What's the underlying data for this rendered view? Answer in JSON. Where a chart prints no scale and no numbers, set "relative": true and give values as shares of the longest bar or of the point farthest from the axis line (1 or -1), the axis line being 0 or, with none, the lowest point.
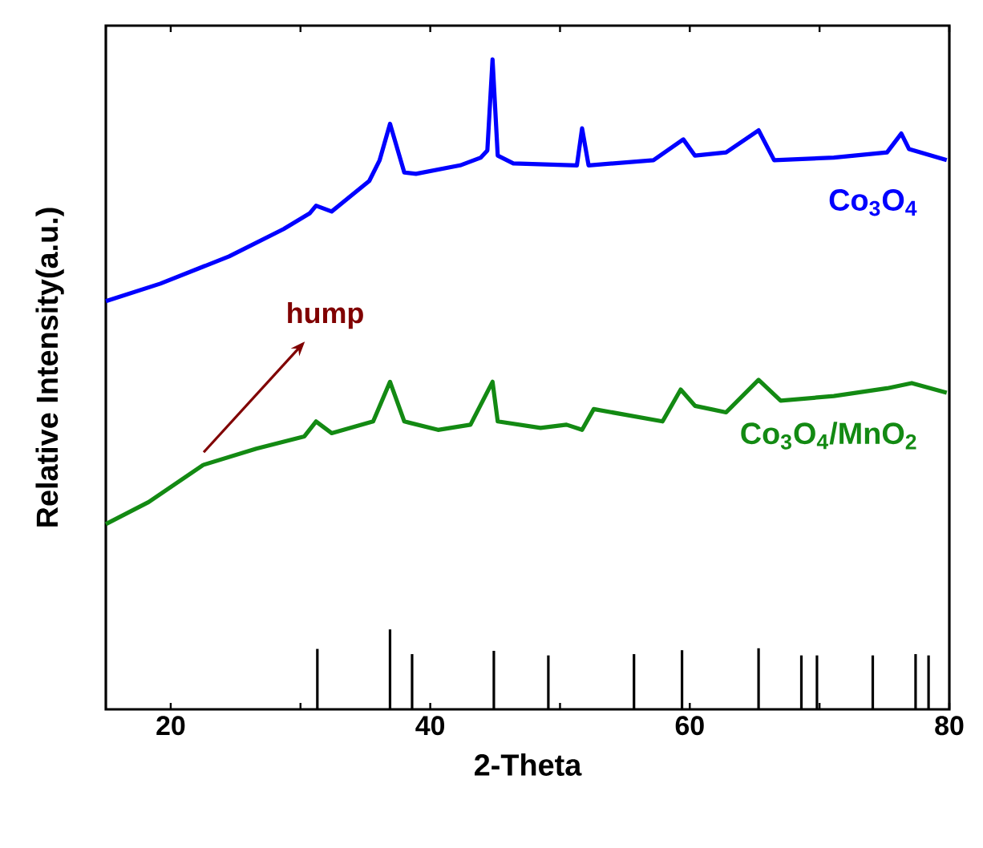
{
  "chart_data": {
    "type": "line",
    "xlabel": "2-Theta",
    "ylabel": "Relative Intensity(a.u.)",
    "relative": true,
    "xlim": [
      15,
      80
    ],
    "xticks": [
      20,
      {
        "value": 30,
        "label": null
      },
      40,
      {
        "value": 50,
        "label": null
      },
      60,
      {
        "value": 70,
        "label": null
      },
      80
    ],
    "marker": "none",
    "line_style": "solid",
    "annotations": [
      "hump"
    ],
    "series": [
      {
        "name": "Co$_{3}$O$_{4}$",
        "color": "#0000ff",
        "x": [
          15.0,
          19.2,
          24.5,
          28.7,
          30.7,
          31.2,
          32.4,
          35.3,
          36.1,
          36.9,
          38.0,
          38.9,
          42.3,
          43.9,
          44.4,
          44.8,
          45.2,
          46.4,
          51.3,
          51.7,
          52.2,
          57.2,
          59.5,
          60.4,
          62.8,
          65.3,
          66.5,
          71.1,
          75.2,
          76.3,
          76.9,
          79.8
        ],
        "values": [
          0.628,
          0.655,
          0.697,
          0.739,
          0.763,
          0.775,
          0.766,
          0.813,
          0.845,
          0.901,
          0.826,
          0.824,
          0.837,
          0.849,
          0.86,
          1.0,
          0.852,
          0.84,
          0.837,
          0.894,
          0.837,
          0.845,
          0.877,
          0.852,
          0.857,
          0.891,
          0.845,
          0.849,
          0.857,
          0.886,
          0.862,
          0.845
        ]
      },
      {
        "name": "Co$_{3}$O$_{4}$/MnO$_{2}$",
        "color": "#138a13",
        "x": [
          15.0,
          18.3,
          22.5,
          26.6,
          30.3,
          31.2,
          32.4,
          35.6,
          36.9,
          38.0,
          40.6,
          43.1,
          44.8,
          45.2,
          48.5,
          50.5,
          51.7,
          52.6,
          57.9,
          59.3,
          60.4,
          62.8,
          65.3,
          67.0,
          71.1,
          75.2,
          77.1,
          79.8
        ],
        "values": [
          0.285,
          0.319,
          0.376,
          0.401,
          0.42,
          0.443,
          0.425,
          0.443,
          0.504,
          0.443,
          0.43,
          0.438,
          0.504,
          0.443,
          0.433,
          0.438,
          0.43,
          0.462,
          0.443,
          0.492,
          0.467,
          0.457,
          0.507,
          0.475,
          0.482,
          0.494,
          0.502,
          0.487
        ]
      },
      {
        "type": "bar",
        "color": "#000000",
        "x": [
          31.3,
          36.9,
          38.6,
          44.9,
          49.1,
          55.7,
          59.4,
          65.3,
          68.6,
          69.8,
          74.1,
          77.4,
          78.4
        ],
        "values": [
          0.093,
          0.123,
          0.085,
          0.09,
          0.083,
          0.085,
          0.091,
          0.094,
          0.083,
          0.083,
          0.083,
          0.085,
          0.083
        ]
      }
    ]
  }
}
